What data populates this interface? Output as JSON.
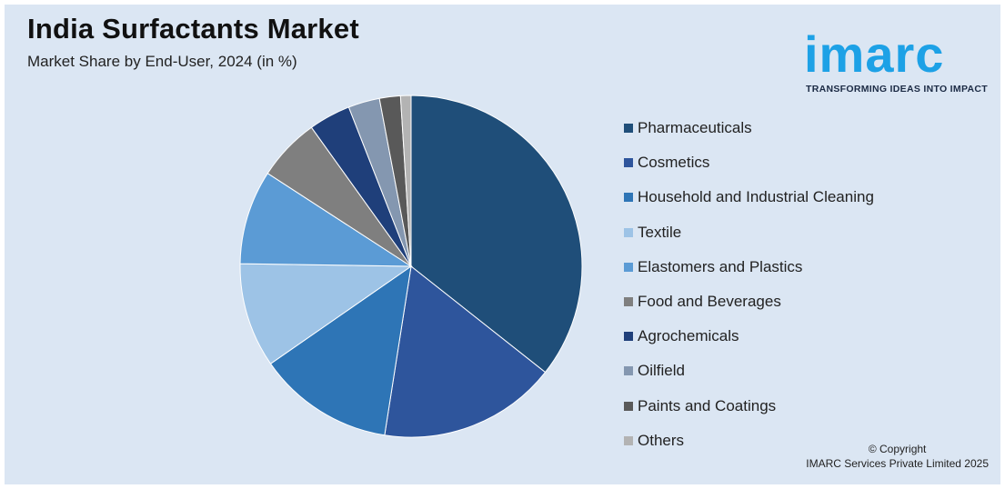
{
  "header": {
    "title": "India Surfactants Market",
    "subtitle": "Market Share by End-User, 2024 (in %)"
  },
  "logo": {
    "word": "imarc",
    "tagline": "TRANSFORMING IDEAS INTO IMPACT",
    "color": "#1da1e6"
  },
  "footer": {
    "copyright_line1": "© Copyright",
    "copyright_line2": "IMARC Services Private Limited 2025"
  },
  "chart_data": {
    "type": "pie",
    "categories": [
      "Pharmaceuticals",
      "Cosmetics",
      "Household and Industrial Cleaning",
      "Textile",
      "Elastomers and Plastics",
      "Food and Beverages",
      "Agrochemicals",
      "Oilfield",
      "Paints and Coatings",
      "Others"
    ],
    "values": [
      36,
      17,
      13,
      10,
      9,
      6,
      4,
      3,
      2,
      1
    ],
    "colors": [
      "#1f4e79",
      "#2e559c",
      "#2e75b6",
      "#9dc3e6",
      "#5b9bd5",
      "#7f7f7f",
      "#1f3f7a",
      "#8497b0",
      "#595959",
      "#b3b3b3"
    ],
    "legend_position": "right"
  }
}
